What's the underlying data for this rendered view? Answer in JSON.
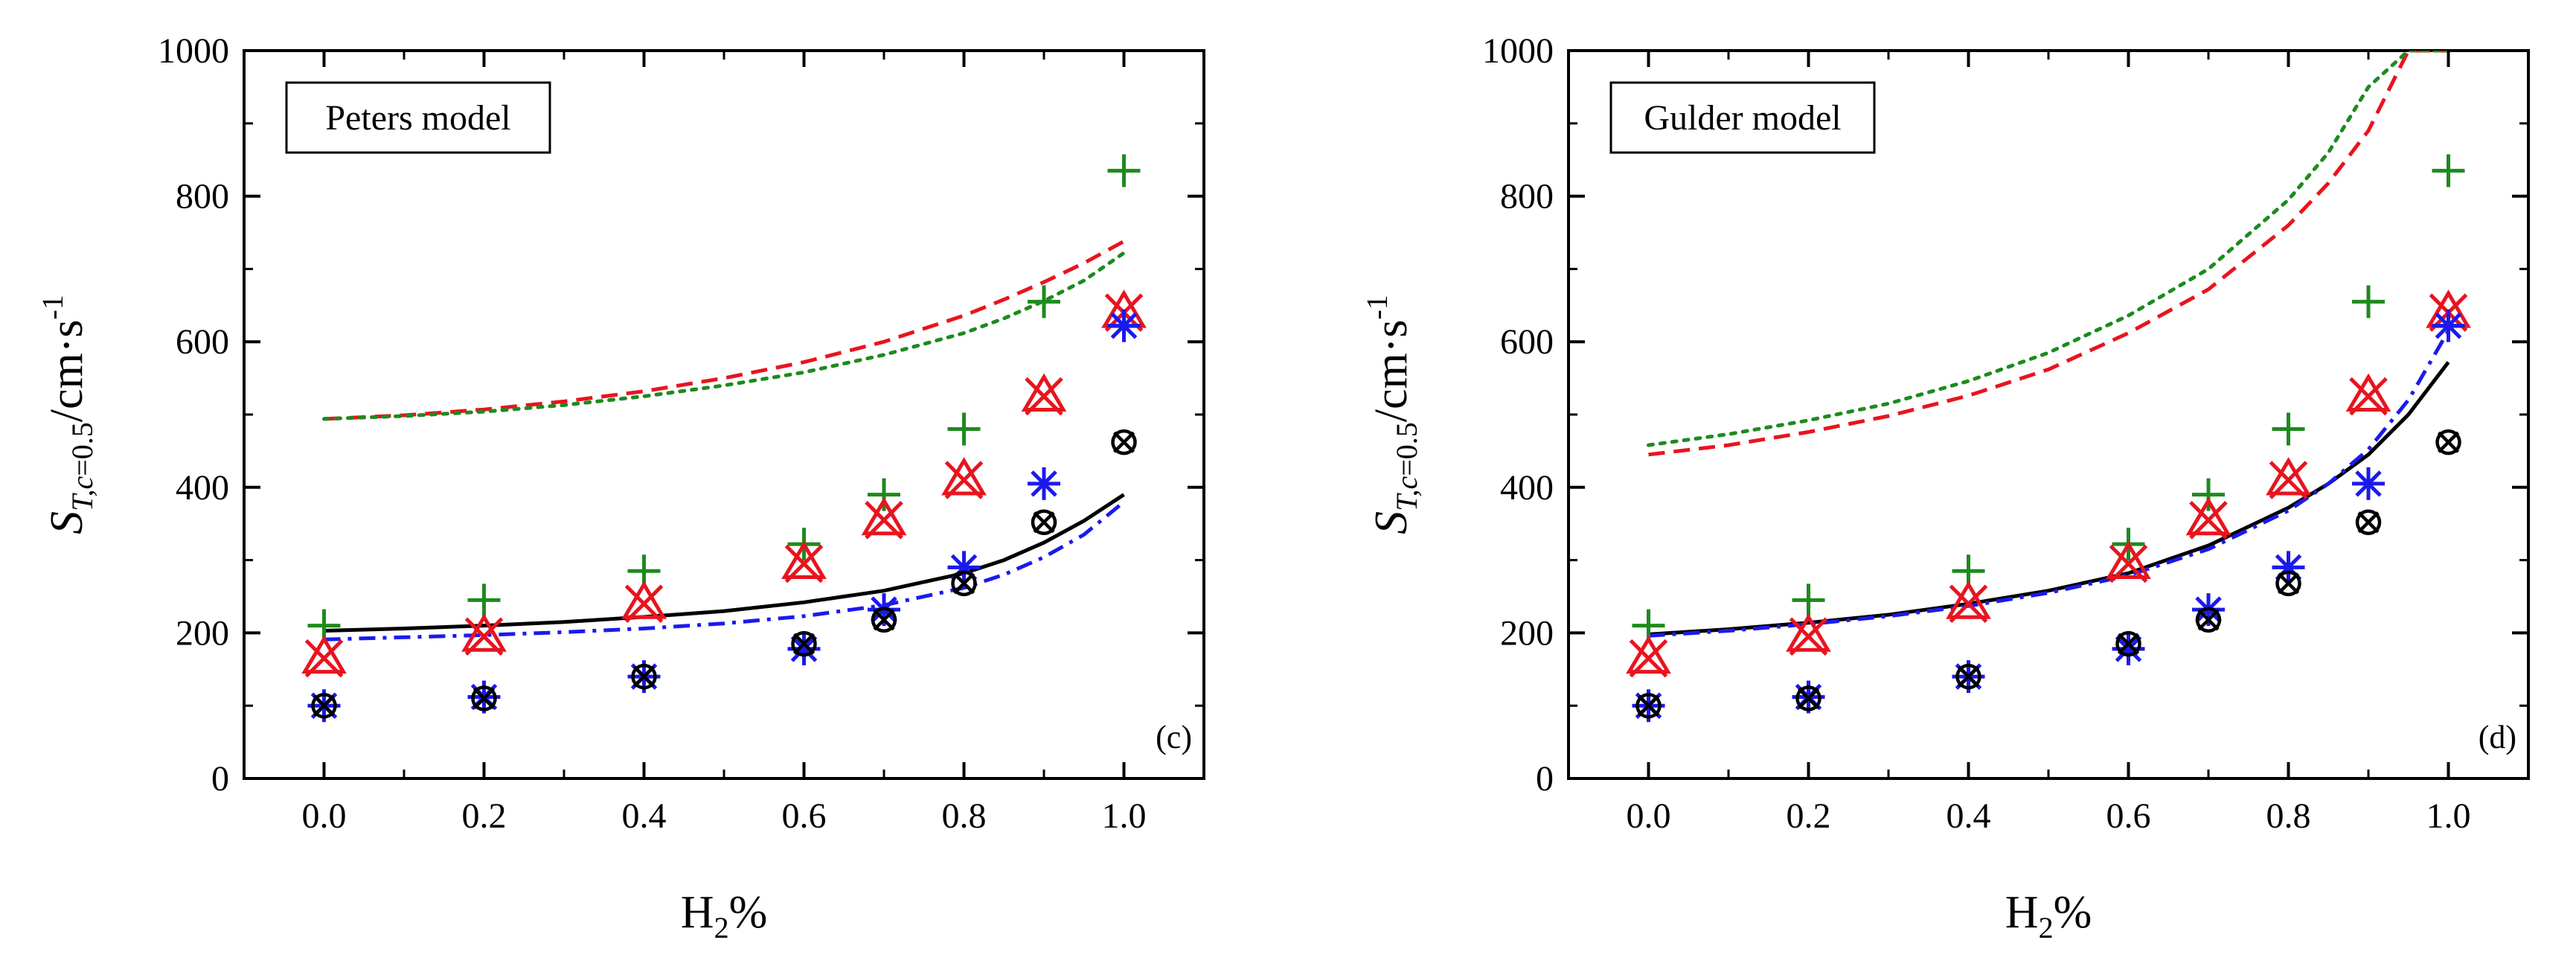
{
  "chart_data": [
    {
      "type": "scatter",
      "panel_label": "(c)",
      "model_label": "Peters model",
      "xlabel": "H2%",
      "ylabel": "S_T,c=0.5/cm·s^-1",
      "xlim": [
        -0.1,
        1.1
      ],
      "ylim": [
        0,
        1000
      ],
      "xticks": [
        "0.0",
        "0.2",
        "0.4",
        "0.6",
        "0.8",
        "1.0"
      ],
      "yticks": [
        "0",
        "200",
        "400",
        "600",
        "800",
        "1000"
      ],
      "grid": false,
      "markers": [
        {
          "symbol": "plus",
          "color": "#1e8a1e",
          "x": [
            0,
            0.2,
            0.4,
            0.6,
            0.7,
            0.8,
            0.9,
            1.0
          ],
          "y": [
            210,
            245,
            285,
            322,
            390,
            480,
            655,
            835
          ]
        },
        {
          "symbol": "triangle-x",
          "color": "#e8141e",
          "x": [
            0,
            0.2,
            0.4,
            0.6,
            0.7,
            0.8,
            0.9,
            1.0
          ],
          "y": [
            165,
            195,
            240,
            295,
            355,
            410,
            525,
            640
          ]
        },
        {
          "symbol": "asterisk",
          "color": "#1a1aee",
          "x": [
            0,
            0.2,
            0.4,
            0.6,
            0.7,
            0.8,
            0.9,
            1.0
          ],
          "y": [
            100,
            112,
            140,
            178,
            232,
            290,
            405,
            622
          ]
        },
        {
          "symbol": "circle-x",
          "color": "#000000",
          "x": [
            0,
            0.2,
            0.4,
            0.6,
            0.7,
            0.8,
            0.9,
            1.0
          ],
          "y": [
            100,
            110,
            140,
            185,
            218,
            268,
            352,
            462
          ]
        }
      ],
      "curves": [
        {
          "style": "solid",
          "color": "#000000",
          "x": [
            0,
            0.1,
            0.2,
            0.3,
            0.4,
            0.5,
            0.6,
            0.7,
            0.8,
            0.85,
            0.9,
            0.95,
            1.0
          ],
          "y": [
            203,
            206,
            210,
            215,
            222,
            230,
            242,
            258,
            282,
            300,
            324,
            354,
            390
          ]
        },
        {
          "style": "dashdot",
          "color": "#1a1aee",
          "x": [
            0,
            0.1,
            0.2,
            0.3,
            0.4,
            0.5,
            0.6,
            0.7,
            0.8,
            0.85,
            0.9,
            0.95,
            1.0
          ],
          "y": [
            191,
            194,
            197,
            201,
            206,
            213,
            223,
            238,
            262,
            280,
            304,
            335,
            380
          ]
        },
        {
          "style": "dashed",
          "color": "#e8141e",
          "x": [
            0,
            0.1,
            0.2,
            0.3,
            0.4,
            0.5,
            0.6,
            0.7,
            0.8,
            0.85,
            0.9,
            0.95,
            1.0
          ],
          "y": [
            494,
            499,
            507,
            518,
            532,
            550,
            572,
            600,
            636,
            658,
            682,
            708,
            738
          ]
        },
        {
          "style": "dotted",
          "color": "#1e8a1e",
          "x": [
            0,
            0.1,
            0.2,
            0.3,
            0.4,
            0.5,
            0.6,
            0.7,
            0.8,
            0.85,
            0.9,
            0.95,
            1.0
          ],
          "y": [
            494,
            498,
            504,
            513,
            525,
            540,
            558,
            582,
            612,
            632,
            656,
            684,
            722
          ]
        }
      ]
    },
    {
      "type": "scatter",
      "panel_label": "(d)",
      "model_label": "Gulder model",
      "xlabel": "H2%",
      "ylabel": "S_T,c=0.5/cm·s^-1",
      "xlim": [
        -0.1,
        1.1
      ],
      "ylim": [
        0,
        1000
      ],
      "xticks": [
        "0.0",
        "0.2",
        "0.4",
        "0.6",
        "0.8",
        "1.0"
      ],
      "yticks": [
        "0",
        "200",
        "400",
        "600",
        "800",
        "1000"
      ],
      "grid": false,
      "markers": [
        {
          "symbol": "plus",
          "color": "#1e8a1e",
          "x": [
            0,
            0.2,
            0.4,
            0.6,
            0.7,
            0.8,
            0.9,
            1.0
          ],
          "y": [
            210,
            245,
            285,
            322,
            390,
            480,
            655,
            835
          ]
        },
        {
          "symbol": "triangle-x",
          "color": "#e8141e",
          "x": [
            0,
            0.2,
            0.4,
            0.6,
            0.7,
            0.8,
            0.9,
            1.0
          ],
          "y": [
            165,
            195,
            240,
            295,
            355,
            410,
            525,
            640
          ]
        },
        {
          "symbol": "asterisk",
          "color": "#1a1aee",
          "x": [
            0,
            0.2,
            0.4,
            0.6,
            0.7,
            0.8,
            0.9,
            1.0
          ],
          "y": [
            100,
            112,
            140,
            178,
            232,
            290,
            405,
            622
          ]
        },
        {
          "symbol": "circle-x",
          "color": "#000000",
          "x": [
            0,
            0.2,
            0.4,
            0.6,
            0.7,
            0.8,
            0.9,
            1.0
          ],
          "y": [
            100,
            110,
            140,
            185,
            218,
            268,
            352,
            462
          ]
        }
      ],
      "curves": [
        {
          "style": "solid",
          "color": "#000000",
          "x": [
            0,
            0.1,
            0.2,
            0.3,
            0.4,
            0.5,
            0.6,
            0.7,
            0.8,
            0.85,
            0.9,
            0.95,
            1.0
          ],
          "y": [
            198,
            205,
            214,
            225,
            240,
            258,
            282,
            320,
            372,
            405,
            445,
            500,
            572
          ]
        },
        {
          "style": "dashdot",
          "color": "#1a1aee",
          "x": [
            0,
            0.1,
            0.2,
            0.3,
            0.4,
            0.5,
            0.6,
            0.7,
            0.8,
            0.85,
            0.9,
            0.95,
            1.0
          ],
          "y": [
            196,
            203,
            212,
            223,
            237,
            255,
            279,
            315,
            368,
            405,
            452,
            520,
            615
          ]
        },
        {
          "style": "dashed",
          "color": "#e8141e",
          "x": [
            0,
            0.1,
            0.2,
            0.3,
            0.4,
            0.5,
            0.6,
            0.7,
            0.8,
            0.85,
            0.9,
            0.95,
            1.0
          ],
          "y": [
            445,
            458,
            476,
            498,
            526,
            562,
            612,
            672,
            760,
            818,
            890,
            1000,
            1000
          ]
        },
        {
          "style": "dotted",
          "color": "#1e8a1e",
          "x": [
            0,
            0.1,
            0.2,
            0.3,
            0.4,
            0.5,
            0.6,
            0.7,
            0.8,
            0.85,
            0.9,
            0.95,
            1.0
          ],
          "y": [
            458,
            473,
            492,
            515,
            546,
            585,
            636,
            700,
            795,
            860,
            950,
            1000,
            1000
          ]
        }
      ]
    }
  ]
}
